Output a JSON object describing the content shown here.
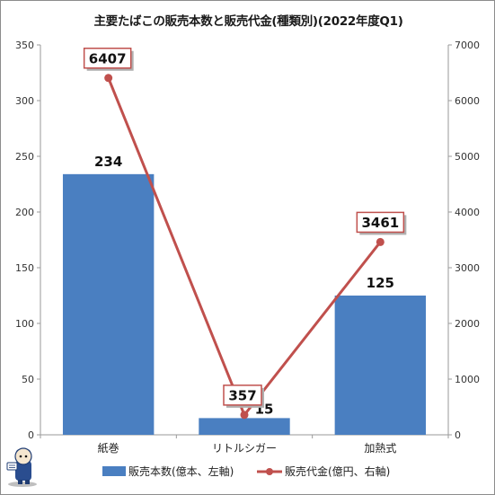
{
  "chart_data": {
    "type": "bar+line",
    "title": "主要たばこの販売本数と販売代金(種類別)(2022年度Q1)",
    "categories": [
      "紙巻",
      "リトルシガー",
      "加熱式"
    ],
    "series": [
      {
        "name": "販売本数(億本、左軸)",
        "type": "bar",
        "axis": "left",
        "values": [
          234,
          15,
          125
        ],
        "color": "#4a7fc1"
      },
      {
        "name": "販売代金(億円、右軸)",
        "type": "line",
        "axis": "right",
        "values": [
          6407,
          357,
          3461
        ],
        "color": "#c0504d"
      }
    ],
    "y_left": {
      "min": 0,
      "max": 350,
      "step": 50,
      "ticks": [
        "0",
        "50",
        "100",
        "150",
        "200",
        "250",
        "300",
        "350"
      ]
    },
    "y_right": {
      "min": 0,
      "max": 7000,
      "step": 1000,
      "ticks": [
        "0",
        "1000",
        "2000",
        "3000",
        "4000",
        "5000",
        "6000",
        "7000"
      ]
    },
    "bar_labels": [
      "234",
      "15",
      "125"
    ],
    "line_labels": [
      "6407",
      "357",
      "3461"
    ],
    "grid": false,
    "legend_position": "bottom"
  },
  "mascot_icon": "mascot-character-icon"
}
